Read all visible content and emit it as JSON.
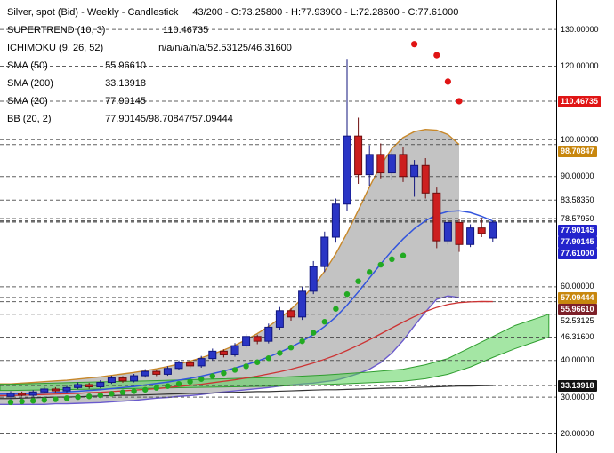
{
  "legend": {
    "title": "Silver, spot (Bid) - Weekly - Candlestick",
    "title_stats": "43/200 - O:73.25800 - H:77.93900 - L:72.28600 - C:77.61000",
    "rows": [
      {
        "label": "SUPERTREND (10, 3)",
        "value": "110.46735"
      },
      {
        "label": "ICHIMOKU (9, 26, 52)",
        "value": "n/a/n/a/n/a/52.53125/46.31600"
      },
      {
        "label": "SMA (50)",
        "value": "55.96610"
      },
      {
        "label": "SMA (200)",
        "value": "33.13918"
      },
      {
        "label": "SMA (20)",
        "value": "77.90145"
      },
      {
        "label": "BB (20, 2)",
        "value": "77.90145/98.70847/57.09444"
      }
    ]
  },
  "chart_data": {
    "type": "candlestick",
    "title": "Silver, spot (Bid) - Weekly",
    "ylim": [
      14.8,
      138.0
    ],
    "grid": "dashed-horizontal",
    "colors": {
      "up": "#2a35c5",
      "up_border": "#10157e",
      "down": "#cc1f1f",
      "down_border": "#6e0d0d",
      "bb_fill": "rgba(130,130,130,0.48)",
      "bb_upper_line": "#c8882a",
      "bb_lower_line": "#6a5acd",
      "cloud_fill": "rgba(90,210,90,0.55)",
      "cloud_edge": "#2f9e2f",
      "sma20_line": "#3355dd",
      "sma50_line": "#cc3333",
      "sma200_line": "#333333",
      "dot_up": "#22aa22",
      "dot_down": "#e01414",
      "grid_line": "#444444"
    },
    "candles": [
      [
        30.2,
        31.6,
        29.6,
        31.0
      ],
      [
        31.0,
        31.5,
        30.2,
        30.5
      ],
      [
        30.5,
        31.9,
        30.1,
        31.4
      ],
      [
        31.4,
        32.8,
        31.0,
        32.2
      ],
      [
        32.2,
        32.7,
        31.3,
        31.7
      ],
      [
        31.7,
        33.1,
        31.3,
        32.6
      ],
      [
        32.6,
        34.0,
        32.2,
        33.4
      ],
      [
        33.4,
        33.9,
        32.3,
        32.8
      ],
      [
        32.8,
        34.6,
        32.4,
        34.0
      ],
      [
        34.0,
        35.8,
        33.6,
        35.2
      ],
      [
        35.2,
        35.7,
        33.9,
        34.4
      ],
      [
        34.4,
        36.3,
        34.0,
        35.8
      ],
      [
        35.8,
        37.6,
        35.3,
        37.0
      ],
      [
        37.0,
        37.5,
        35.7,
        36.2
      ],
      [
        36.2,
        38.4,
        35.8,
        37.8
      ],
      [
        37.8,
        40.0,
        37.3,
        39.4
      ],
      [
        39.4,
        39.9,
        37.9,
        38.5
      ],
      [
        38.5,
        41.2,
        38.0,
        40.5
      ],
      [
        40.5,
        43.2,
        40.0,
        42.5
      ],
      [
        42.5,
        43.0,
        40.8,
        41.5
      ],
      [
        41.5,
        44.7,
        41.0,
        44.0
      ],
      [
        44.0,
        47.2,
        43.4,
        46.5
      ],
      [
        46.5,
        47.0,
        44.4,
        45.2
      ],
      [
        45.2,
        50.0,
        44.6,
        49.0
      ],
      [
        49.0,
        54.5,
        48.3,
        53.5
      ],
      [
        53.5,
        54.2,
        50.8,
        51.8
      ],
      [
        51.8,
        60.0,
        51.0,
        58.8
      ],
      [
        58.8,
        67.0,
        58.0,
        65.5
      ],
      [
        65.5,
        75.0,
        64.0,
        73.5
      ],
      [
        73.5,
        84.0,
        72.0,
        82.5
      ],
      [
        82.5,
        122.0,
        80.5,
        101.0
      ],
      [
        101.0,
        106.0,
        88.0,
        90.5
      ],
      [
        90.5,
        98.5,
        87.5,
        96.0
      ],
      [
        96.0,
        99.0,
        89.5,
        91.0
      ],
      [
        91.0,
        97.5,
        89.0,
        96.0
      ],
      [
        96.0,
        98.0,
        88.5,
        90.0
      ],
      [
        90.0,
        94.5,
        84.5,
        93.0
      ],
      [
        93.0,
        95.0,
        84.0,
        85.5
      ],
      [
        85.5,
        87.0,
        70.5,
        72.5
      ],
      [
        72.5,
        79.0,
        71.5,
        77.5
      ],
      [
        77.5,
        78.5,
        69.5,
        71.5
      ],
      [
        71.5,
        77.0,
        70.8,
        76.0
      ],
      [
        76.0,
        78.8,
        73.5,
        74.5
      ],
      [
        73.258,
        77.939,
        72.286,
        77.61
      ]
    ],
    "overlays": {
      "sma20": [
        30.8,
        30.9,
        31.0,
        31.1,
        31.3,
        31.4,
        31.6,
        31.8,
        32.0,
        32.3,
        32.6,
        32.9,
        33.3,
        33.7,
        34.1,
        34.6,
        35.1,
        35.7,
        36.4,
        37.1,
        37.9,
        38.8,
        39.8,
        40.9,
        42.2,
        43.6,
        45.2,
        47.0,
        49.2,
        51.8,
        55.0,
        58.6,
        62.4,
        66.2,
        69.8,
        73.0,
        75.8,
        78.0,
        79.6,
        80.5,
        80.7,
        80.2,
        79.2,
        77.9
      ],
      "sma50": [
        30.4,
        30.5,
        30.6,
        30.7,
        30.8,
        30.9,
        31.0,
        31.2,
        31.3,
        31.5,
        31.7,
        31.9,
        32.1,
        32.3,
        32.6,
        32.9,
        33.2,
        33.5,
        33.9,
        34.3,
        34.7,
        35.2,
        35.7,
        36.3,
        36.9,
        37.6,
        38.4,
        39.3,
        40.3,
        41.4,
        42.7,
        44.1,
        45.6,
        47.2,
        48.8,
        50.4,
        51.9,
        53.3,
        54.4,
        55.2,
        55.7,
        55.9,
        56.0,
        55.97
      ],
      "sma200": [
        29.6,
        29.7,
        29.8,
        29.9,
        30.0,
        30.0,
        30.1,
        30.2,
        30.3,
        30.4,
        30.5,
        30.5,
        30.6,
        30.7,
        30.8,
        30.9,
        31.0,
        31.0,
        31.1,
        31.2,
        31.3,
        31.4,
        31.5,
        31.5,
        31.6,
        31.7,
        31.8,
        31.9,
        32.0,
        32.0,
        32.1,
        32.2,
        32.3,
        32.4,
        32.5,
        32.5,
        32.6,
        32.7,
        32.8,
        32.9,
        33.0,
        33.0,
        33.1,
        33.14
      ],
      "bb_upper": [
        33.6,
        33.8,
        34.0,
        34.2,
        34.4,
        34.6,
        34.9,
        35.2,
        35.5,
        35.9,
        36.3,
        36.7,
        37.2,
        37.7,
        38.3,
        39.0,
        39.8,
        40.7,
        41.7,
        42.8,
        44.1,
        45.6,
        47.3,
        49.2,
        51.4,
        53.9,
        56.8,
        60.2,
        64.2,
        69.0,
        74.6,
        80.8,
        87.2,
        93.0,
        97.6,
        100.6,
        102.2,
        102.8,
        102.6,
        101.4,
        98.7
      ],
      "bb_lower": [
        28.0,
        28.0,
        28.0,
        28.0,
        28.2,
        28.2,
        28.3,
        28.4,
        28.5,
        28.7,
        28.9,
        29.1,
        29.4,
        29.7,
        29.9,
        30.2,
        30.4,
        30.7,
        31.1,
        31.4,
        31.7,
        32.0,
        32.3,
        32.6,
        33.0,
        33.3,
        33.6,
        33.8,
        34.2,
        34.6,
        35.4,
        36.4,
        37.6,
        39.4,
        42.0,
        45.4,
        49.4,
        53.2,
        56.6,
        57.5,
        57.1
      ],
      "ichimoku_a": [
        [
          0,
          33.5
        ],
        [
          6,
          34.0
        ],
        [
          12,
          34.4
        ],
        [
          18,
          34.9
        ],
        [
          24,
          35.4
        ],
        [
          28,
          36.0
        ],
        [
          32,
          36.8
        ],
        [
          35,
          37.6
        ],
        [
          37,
          38.8
        ],
        [
          39,
          40.5
        ],
        [
          41,
          43.5
        ],
        [
          43,
          46.5
        ],
        [
          45,
          49.5
        ],
        [
          47,
          51.5
        ],
        [
          48,
          52.53
        ]
      ],
      "ichimoku_b": [
        [
          0,
          31.8
        ],
        [
          6,
          32.1
        ],
        [
          12,
          32.4
        ],
        [
          18,
          32.7
        ],
        [
          24,
          33.0
        ],
        [
          28,
          33.4
        ],
        [
          32,
          33.9
        ],
        [
          35,
          34.3
        ],
        [
          37,
          35.0
        ],
        [
          39,
          36.2
        ],
        [
          41,
          38.2
        ],
        [
          43,
          40.8
        ],
        [
          45,
          43.2
        ],
        [
          47,
          45.3
        ],
        [
          48,
          46.32
        ]
      ],
      "supertrend_green": [
        [
          0,
          28.6
        ],
        [
          1,
          28.8
        ],
        [
          2,
          29.0
        ],
        [
          3,
          29.2
        ],
        [
          4,
          29.4
        ],
        [
          5,
          29.7
        ],
        [
          6,
          30.0
        ],
        [
          7,
          30.2
        ],
        [
          8,
          30.5
        ],
        [
          9,
          30.9
        ],
        [
          10,
          31.3
        ],
        [
          11,
          31.6
        ],
        [
          12,
          32.0
        ],
        [
          13,
          32.5
        ],
        [
          14,
          33.0
        ],
        [
          15,
          33.6
        ],
        [
          16,
          34.2
        ],
        [
          17,
          34.9
        ],
        [
          18,
          35.7
        ],
        [
          19,
          36.5
        ],
        [
          20,
          37.4
        ],
        [
          21,
          38.4
        ],
        [
          22,
          39.5
        ],
        [
          23,
          40.6
        ],
        [
          24,
          42.0
        ],
        [
          25,
          43.5
        ],
        [
          26,
          45.2
        ],
        [
          27,
          47.5
        ],
        [
          28,
          50.5
        ],
        [
          29,
          54.0
        ],
        [
          30,
          58.0
        ],
        [
          31,
          61.5
        ],
        [
          32,
          64.0
        ],
        [
          33,
          66.0
        ],
        [
          34,
          67.5
        ],
        [
          35,
          68.5
        ]
      ],
      "supertrend_red": [
        [
          36,
          126.0
        ],
        [
          38,
          123.0
        ],
        [
          39,
          115.8
        ],
        [
          40,
          110.47
        ]
      ]
    },
    "axis": {
      "labels": [
        {
          "text": "130.00000",
          "price": 130
        },
        {
          "text": "120.00000",
          "price": 120
        },
        {
          "text": "100.00000",
          "price": 100
        },
        {
          "text": "90.00000",
          "price": 90
        },
        {
          "text": "83.58350",
          "price": 83.5835
        },
        {
          "text": "78.57950",
          "price": 78.5795
        },
        {
          "text": "60.00000",
          "price": 60
        },
        {
          "text": "52.53125",
          "price": 52.53125
        },
        {
          "text": "46.31600",
          "price": 46.316
        },
        {
          "text": "40.00000",
          "price": 40
        },
        {
          "text": "30.00000",
          "price": 30
        },
        {
          "text": "20.00000",
          "price": 20
        }
      ],
      "badges": [
        {
          "text": "110.46735",
          "price": 110.46735,
          "color": "#e01414"
        },
        {
          "text": "98.70847",
          "price": 98.70847,
          "color": "#c8870e"
        },
        {
          "text": "77.90145",
          "price": 77.90145,
          "color": "#2323cc"
        },
        {
          "text": "77.90145",
          "price": 77.90145,
          "color": "#2323cc"
        },
        {
          "text": "77.61000",
          "price": 77.61,
          "color": "#2323cc"
        },
        {
          "text": "57.09444",
          "price": 57.09444,
          "color": "#c8870e"
        },
        {
          "text": "55.96610",
          "price": 55.9661,
          "color": "#7d2029"
        },
        {
          "text": "33.13918",
          "price": 33.13918,
          "color": "#141414"
        }
      ]
    }
  }
}
